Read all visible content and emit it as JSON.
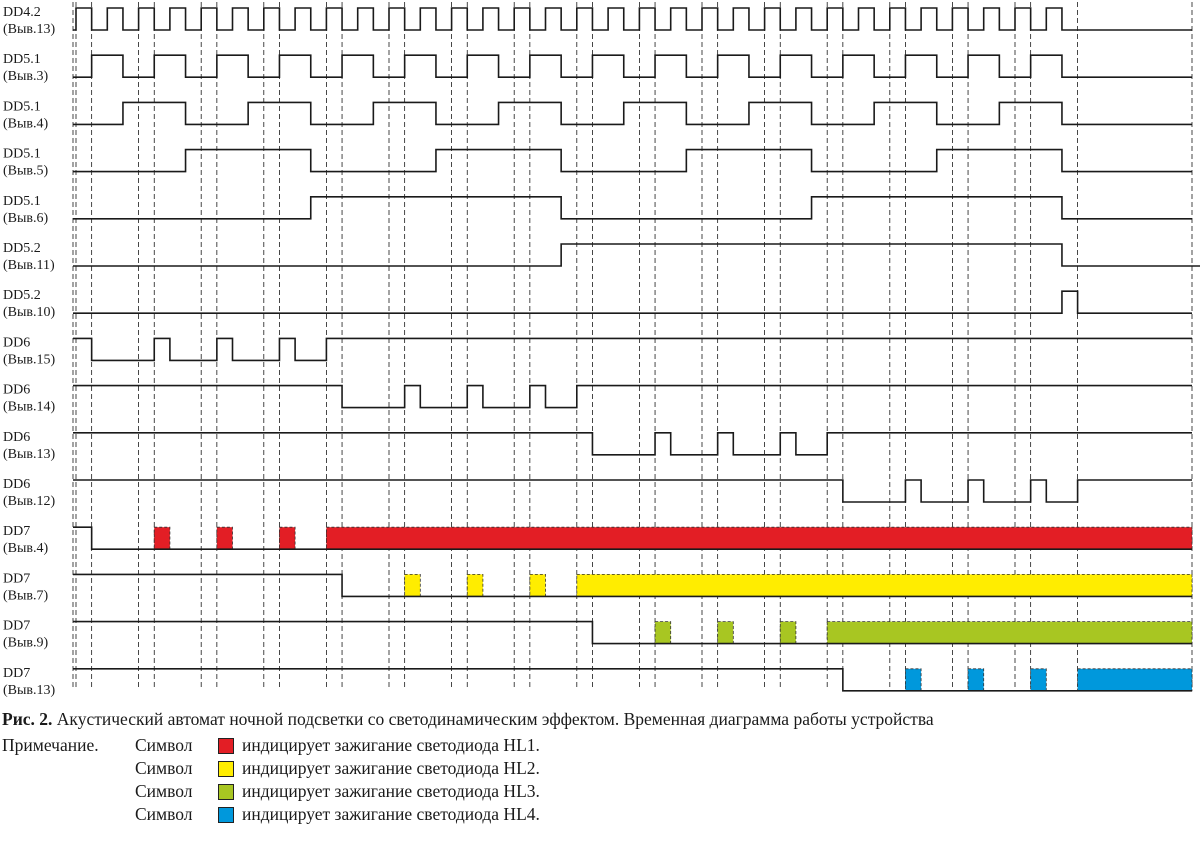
{
  "signals": [
    {
      "name": "DD4.2",
      "pin": "(Выв.13)"
    },
    {
      "name": "DD5.1",
      "pin": "(Выв.3)"
    },
    {
      "name": "DD5.1",
      "pin": "(Выв.4)"
    },
    {
      "name": "DD5.1",
      "pin": "(Выв.5)"
    },
    {
      "name": "DD5.1",
      "pin": "(Выв.6)"
    },
    {
      "name": "DD5.2",
      "pin": "(Выв.11)"
    },
    {
      "name": "DD5.2",
      "pin": "(Выв.10)"
    },
    {
      "name": "DD6",
      "pin": "(Выв.15)"
    },
    {
      "name": "DD6",
      "pin": "(Выв.14)"
    },
    {
      "name": "DD6",
      "pin": "(Выв.13)"
    },
    {
      "name": "DD6",
      "pin": "(Выв.12)"
    },
    {
      "name": "DD7",
      "pin": "(Выв.4)"
    },
    {
      "name": "DD7",
      "pin": "(Выв.7)"
    },
    {
      "name": "DD7",
      "pin": "(Выв.9)"
    },
    {
      "name": "DD7",
      "pin": "(Выв.13)"
    }
  ],
  "colors": {
    "HL1": "#e31e25",
    "HL2": "#ffed00",
    "HL3": "#a8c622",
    "HL4": "#0098dc"
  },
  "caption": {
    "label": "Рис. 2.",
    "text": " Акустический автомат ночной подсветки со светодинамическим эффектом. Временная диаграмма работы устройства"
  },
  "note": {
    "heading": "Примечание.",
    "rows": [
      {
        "symbol": "Символ",
        "color_key": "HL1",
        "text": "индицирует зажигание светодиода HL1."
      },
      {
        "symbol": "Символ",
        "color_key": "HL2",
        "text": "индицирует зажигание светодиода HL2."
      },
      {
        "symbol": "Символ",
        "color_key": "HL3",
        "text": "индицирует зажигание светодиода HL3."
      },
      {
        "symbol": "Символ",
        "color_key": "HL4",
        "text": "индицирует зажигание светодиода HL4."
      }
    ]
  }
}
